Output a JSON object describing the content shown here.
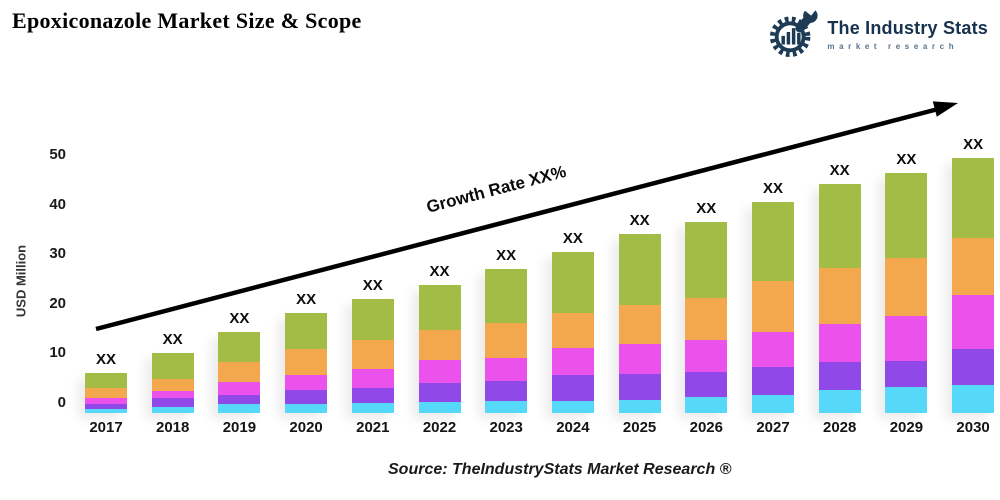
{
  "header": {
    "title": "Epoxiconazole Market Size & Scope"
  },
  "logo": {
    "name": "The Industry Stats",
    "tagline": "market research",
    "color": "#16324e",
    "tagline_color": "#53748f"
  },
  "chart_data": {
    "type": "bar",
    "stacked": true,
    "ylabel": "USD Million",
    "ylim": [
      0,
      50
    ],
    "yticks": [
      0,
      10,
      20,
      30,
      40,
      50
    ],
    "grid": false,
    "legend": "none",
    "categories": [
      "2017",
      "2018",
      "2019",
      "2020",
      "2021",
      "2022",
      "2023",
      "2024",
      "2025",
      "2026",
      "2027",
      "2028",
      "2029",
      "2030"
    ],
    "bar_value_labels": [
      "XX",
      "XX",
      "XX",
      "XX",
      "XX",
      "XX",
      "XX",
      "XX",
      "XX",
      "XX",
      "XX",
      "XX",
      "XX",
      "XX"
    ],
    "bar_totals_estimated": [
      6.0,
      10.1,
      14.4,
      18.2,
      20.9,
      23.9,
      27.1,
      30.4,
      34.1,
      36.6,
      40.5,
      44.3,
      46.3,
      49.4
    ],
    "annotation": "Growth Rate XX%",
    "series": [
      {
        "name": "segment-cyan",
        "color": "#56d9f8",
        "values": [
          0.9,
          1.25,
          1.75,
          1.8,
          2.05,
          2.25,
          2.45,
          2.4,
          2.65,
          3.25,
          3.55,
          4.7,
          5.15,
          5.55
        ]
      },
      {
        "name": "segment-purple",
        "color": "#9049e8",
        "values": [
          0.9,
          1.8,
          1.8,
          2.8,
          3.0,
          3.7,
          4.1,
          5.2,
          5.3,
          5.0,
          5.7,
          5.55,
          5.3,
          7.3
        ]
      },
      {
        "name": "segment-magenta",
        "color": "#eb51eb",
        "values": [
          1.15,
          1.4,
          2.7,
          3.0,
          3.9,
          4.8,
          4.6,
          5.4,
          6.0,
          6.5,
          7.0,
          7.7,
          9.2,
          11.0
        ]
      },
      {
        "name": "segment-orange",
        "color": "#f4a84e",
        "values": [
          2.0,
          2.5,
          4.0,
          5.4,
          5.8,
          5.9,
          7.0,
          7.2,
          7.9,
          8.5,
          10.3,
          11.3,
          11.6,
          11.4
        ]
      },
      {
        "name": "segment-green",
        "color": "#a2bc45",
        "values": [
          3.05,
          5.1,
          6.15,
          7.2,
          8.15,
          9.25,
          10.9,
          12.2,
          14.2,
          15.3,
          15.9,
          17.0,
          17.05,
          16.15
        ]
      }
    ]
  },
  "source": {
    "text": "Source: TheIndustryStats Market Research ®"
  }
}
